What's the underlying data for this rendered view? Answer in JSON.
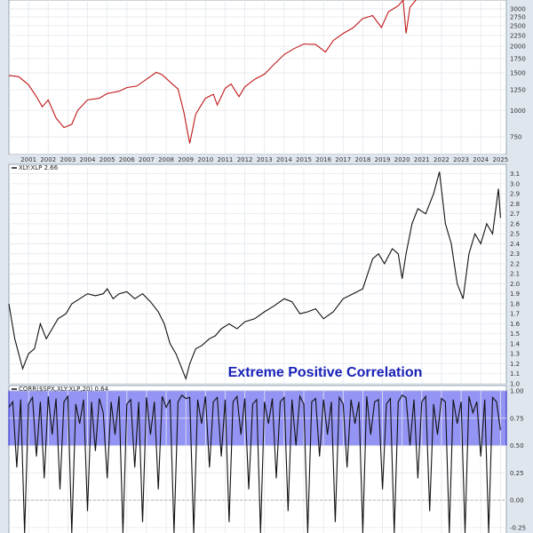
{
  "chart_data": [
    {
      "type": "line",
      "title": "",
      "years": [
        "2001",
        "2002",
        "2003",
        "2004",
        "2005",
        "2006",
        "2007",
        "2008",
        "2009",
        "2010",
        "2011",
        "2012",
        "2013",
        "2014",
        "2015",
        "2016",
        "2017",
        "2018",
        "2019",
        "2020",
        "2021",
        "2022",
        "2023",
        "2024",
        "2025"
      ],
      "yscale": "log",
      "yticks": [
        "750",
        "1000",
        "1250",
        "1500",
        "1750",
        "2000",
        "2250",
        "2500",
        "2750",
        "3000"
      ],
      "ylim": [
        620,
        3300
      ],
      "line_color": "#c01818",
      "series": [
        {
          "x": [
            2000.0,
            2000.5,
            2001.0,
            2001.4,
            2001.7,
            2002.0,
            2002.4,
            2002.8,
            2003.2,
            2003.5,
            2004.0,
            2004.6,
            2005.0,
            2005.6,
            2006.0,
            2006.5,
            2007.0,
            2007.5,
            2007.8,
            2008.2,
            2008.6,
            2008.9,
            2009.2,
            2009.5,
            2010.0,
            2010.4,
            2010.6,
            2011.0,
            2011.3,
            2011.7,
            2012.0,
            2012.5,
            2013.0,
            2013.5,
            2014.0,
            2014.5,
            2015.0,
            2015.6,
            2016.1,
            2016.5,
            2017.0,
            2017.5,
            2018.0,
            2018.5,
            2018.95,
            2019.3,
            2019.8,
            2020.05,
            2020.2,
            2020.4,
            2020.7
          ],
          "values": [
            1460,
            1440,
            1320,
            1160,
            1040,
            1120,
            920,
            830,
            860,
            1000,
            1120,
            1140,
            1200,
            1230,
            1280,
            1300,
            1400,
            1510,
            1470,
            1360,
            1260,
            980,
            700,
            960,
            1140,
            1190,
            1060,
            1270,
            1330,
            1160,
            1290,
            1400,
            1480,
            1650,
            1830,
            1950,
            2050,
            2040,
            1880,
            2130,
            2300,
            2440,
            2700,
            2790,
            2450,
            2900,
            3100,
            3300,
            2300,
            3050,
            3300
          ]
        }
      ]
    },
    {
      "type": "line",
      "title": "XLY:XLP 2.66",
      "yticks": [
        "1.0",
        "1.1",
        "1.2",
        "1.3",
        "1.4",
        "1.5",
        "1.6",
        "1.7",
        "1.8",
        "1.9",
        "2.0",
        "2.1",
        "2.2",
        "2.3",
        "2.4",
        "2.5",
        "2.6",
        "2.7",
        "2.8",
        "2.9",
        "3.0",
        "3.1"
      ],
      "ylim": [
        1.0,
        3.15
      ],
      "line_color": "#111111",
      "series": [
        {
          "name": "XLY:XLP",
          "x": [
            2000.0,
            2000.3,
            2000.7,
            2001.0,
            2001.3,
            2001.6,
            2001.9,
            2002.2,
            2002.5,
            2002.9,
            2003.2,
            2003.6,
            2004.0,
            2004.4,
            2004.8,
            2005.0,
            2005.3,
            2005.6,
            2006.0,
            2006.4,
            2006.8,
            2007.2,
            2007.6,
            2007.9,
            2008.2,
            2008.5,
            2008.8,
            2009.0,
            2009.2,
            2009.5,
            2009.8,
            2010.2,
            2010.5,
            2010.8,
            2011.2,
            2011.6,
            2012.0,
            2012.5,
            2013.0,
            2013.5,
            2014.0,
            2014.4,
            2014.8,
            2015.2,
            2015.6,
            2016.0,
            2016.5,
            2017.0,
            2017.5,
            2018.0,
            2018.5,
            2018.8,
            2019.1,
            2019.5,
            2019.8,
            2020.0,
            2020.2,
            2020.5,
            2020.8,
            2021.2,
            2021.6,
            2021.9,
            2022.2,
            2022.5,
            2022.8,
            2023.1,
            2023.4,
            2023.7,
            2024.0,
            2024.3,
            2024.6,
            2024.9,
            2025.0
          ],
          "values": [
            1.8,
            1.45,
            1.15,
            1.3,
            1.35,
            1.6,
            1.45,
            1.55,
            1.65,
            1.7,
            1.8,
            1.85,
            1.9,
            1.88,
            1.9,
            1.95,
            1.85,
            1.9,
            1.92,
            1.85,
            1.9,
            1.82,
            1.72,
            1.6,
            1.4,
            1.3,
            1.15,
            1.05,
            1.2,
            1.35,
            1.38,
            1.45,
            1.48,
            1.55,
            1.6,
            1.55,
            1.62,
            1.65,
            1.72,
            1.78,
            1.85,
            1.82,
            1.7,
            1.72,
            1.75,
            1.65,
            1.72,
            1.85,
            1.9,
            1.95,
            2.25,
            2.3,
            2.2,
            2.35,
            2.3,
            2.05,
            2.3,
            2.6,
            2.75,
            2.7,
            2.9,
            3.12,
            2.6,
            2.4,
            2.0,
            1.85,
            2.3,
            2.5,
            2.4,
            2.6,
            2.5,
            2.95,
            2.66
          ]
        }
      ]
    },
    {
      "type": "line",
      "title": "CORR($SPX,XLY:XLP,20) 0.64",
      "annotation": "Extreme Positive Correlation",
      "highlight_band": [
        0.5,
        1.0
      ],
      "highlight_color": "#7070f0",
      "yticks": [
        "-0.25",
        "0.00",
        "0.25",
        "0.50",
        "0.75",
        "1.00"
      ],
      "ylim": [
        -0.3,
        1.0
      ],
      "line_color": "#111111",
      "series": [
        {
          "name": "CORR($SPX,XLY:XLP,20)",
          "x": [
            2000.0,
            2000.2,
            2000.4,
            2000.6,
            2000.8,
            2001.0,
            2001.2,
            2001.4,
            2001.6,
            2001.8,
            2002.0,
            2002.2,
            2002.4,
            2002.6,
            2002.8,
            2003.0,
            2003.2,
            2003.4,
            2003.6,
            2003.8,
            2004.0,
            2004.2,
            2004.4,
            2004.6,
            2004.8,
            2005.0,
            2005.2,
            2005.4,
            2005.6,
            2005.8,
            2006.0,
            2006.2,
            2006.4,
            2006.6,
            2006.8,
            2007.0,
            2007.2,
            2007.4,
            2007.6,
            2007.8,
            2008.0,
            2008.2,
            2008.4,
            2008.6,
            2008.8,
            2009.0,
            2009.2,
            2009.4,
            2009.6,
            2009.8,
            2010.0,
            2010.2,
            2010.4,
            2010.6,
            2010.8,
            2011.0,
            2011.2,
            2011.4,
            2011.6,
            2011.8,
            2012.0,
            2012.2,
            2012.4,
            2012.6,
            2012.8,
            2013.0,
            2013.2,
            2013.4,
            2013.6,
            2013.8,
            2014.0,
            2014.2,
            2014.4,
            2014.6,
            2014.8,
            2015.0,
            2015.2,
            2015.4,
            2015.6,
            2015.8,
            2016.0,
            2016.2,
            2016.4,
            2016.6,
            2016.8,
            2017.0,
            2017.2,
            2017.4,
            2017.6,
            2017.8,
            2018.0,
            2018.2,
            2018.4,
            2018.6,
            2018.8,
            2019.0,
            2019.2,
            2019.4,
            2019.6,
            2019.8,
            2020.0,
            2020.2,
            2020.4,
            2020.6,
            2020.8,
            2021.0,
            2021.2,
            2021.4,
            2021.6,
            2021.8,
            2022.0,
            2022.2,
            2022.4,
            2022.6,
            2022.8,
            2023.0,
            2023.2,
            2023.4,
            2023.6,
            2023.8,
            2024.0,
            2024.2,
            2024.4,
            2024.6,
            2024.8,
            2025.0
          ],
          "values": [
            0.85,
            0.9,
            0.3,
            0.92,
            -0.3,
            0.88,
            0.94,
            0.4,
            0.9,
            0.2,
            0.95,
            0.6,
            0.93,
            0.1,
            0.9,
            0.95,
            -0.3,
            0.88,
            0.7,
            0.92,
            -0.1,
            0.9,
            0.45,
            0.93,
            0.8,
            0.2,
            0.9,
            0.6,
            0.95,
            -0.3,
            0.88,
            0.92,
            0.3,
            0.9,
            -0.2,
            0.94,
            0.6,
            0.9,
            0.1,
            0.95,
            0.85,
            0.92,
            -0.3,
            0.9,
            0.96,
            0.93,
            0.94,
            -0.3,
            0.92,
            0.7,
            0.95,
            0.3,
            0.9,
            0.94,
            0.4,
            0.92,
            -0.2,
            0.9,
            0.95,
            0.6,
            0.93,
            0.1,
            0.88,
            0.92,
            -0.3,
            0.9,
            0.7,
            0.93,
            0.2,
            0.9,
            0.94,
            -0.1,
            0.92,
            0.5,
            0.95,
            0.88,
            -0.3,
            0.9,
            0.93,
            0.4,
            0.92,
            0.6,
            0.9,
            -0.2,
            0.94,
            0.88,
            0.3,
            0.92,
            0.7,
            0.9,
            -0.3,
            0.95,
            0.6,
            0.9,
            0.92,
            0.1,
            0.88,
            0.93,
            -0.3,
            0.9,
            0.96,
            0.94,
            0.5,
            0.92,
            0.2,
            0.9,
            0.95,
            -0.1,
            0.88,
            0.6,
            0.93,
            0.9,
            -0.3,
            0.92,
            0.7,
            0.9,
            -0.3,
            0.95,
            0.8,
            0.9,
            0.4,
            0.92,
            -0.3,
            0.94,
            0.9,
            0.64
          ]
        }
      ]
    }
  ]
}
